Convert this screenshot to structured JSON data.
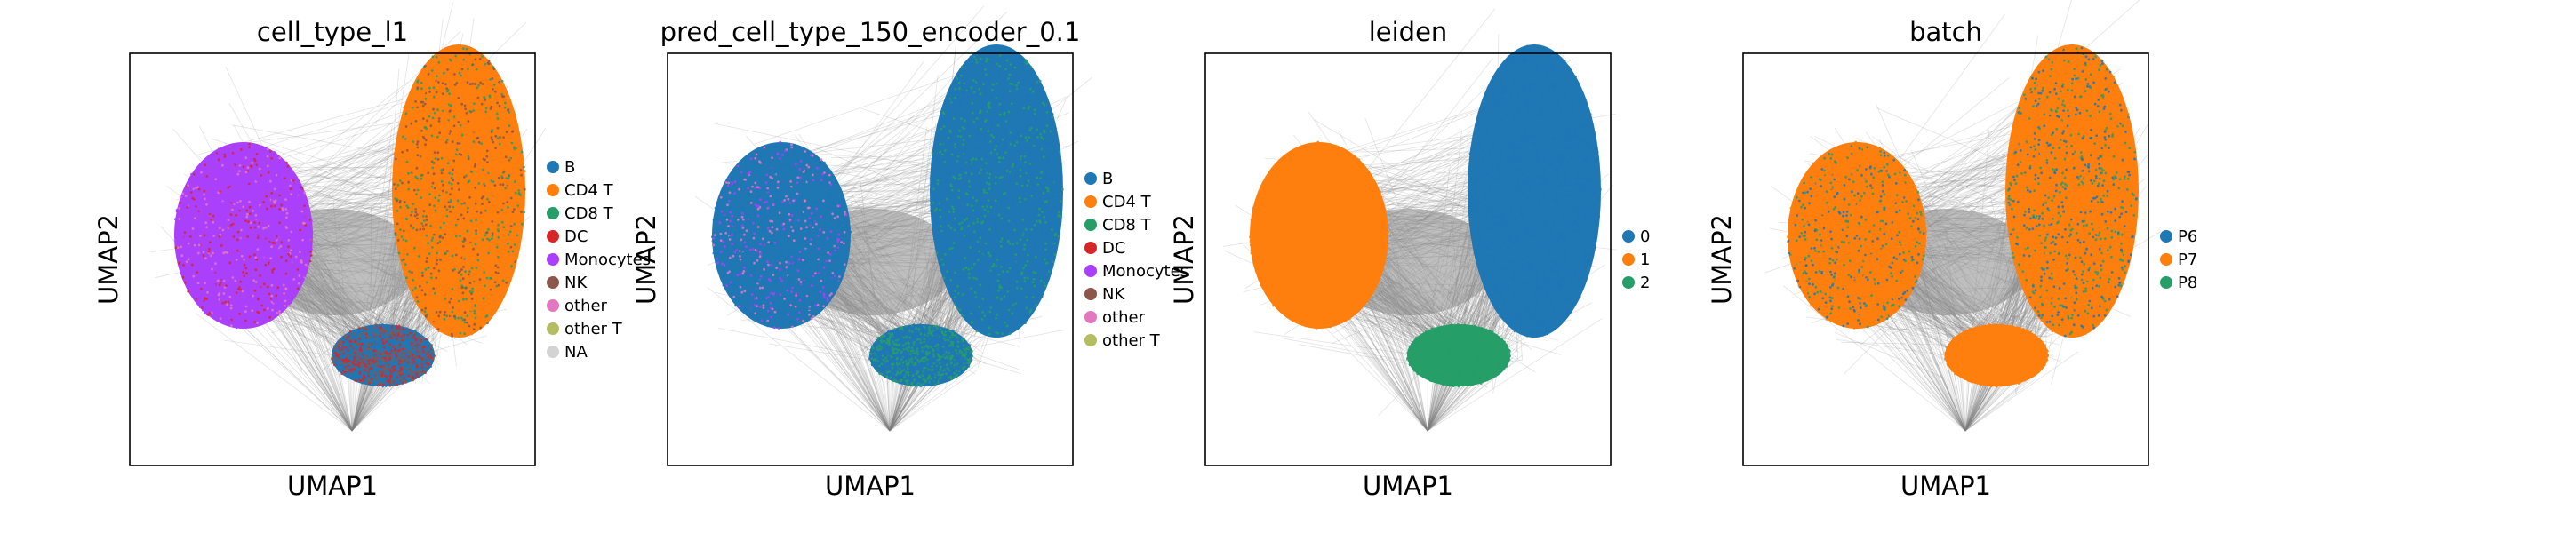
{
  "figure": {
    "panels": [
      {
        "title": "cell_type_l1",
        "xlabel": "UMAP1",
        "ylabel": "UMAP2",
        "legend": [
          {
            "label": "B",
            "color": "#1f77b4"
          },
          {
            "label": "CD4 T",
            "color": "#ff7f0e"
          },
          {
            "label": "CD8 T",
            "color": "#279e68"
          },
          {
            "label": "DC",
            "color": "#d62728"
          },
          {
            "label": "Monocytes",
            "color": "#aa40fc"
          },
          {
            "label": "NK",
            "color": "#8c564b"
          },
          {
            "label": "other",
            "color": "#e377c2"
          },
          {
            "label": "other T",
            "color": "#b5bd61"
          },
          {
            "label": "NA",
            "color": "#d3d3d3"
          }
        ],
        "coloring": {
          "left_cluster": "#aa40fc",
          "left_cluster_accents": [
            "#e377c2",
            "#d62728"
          ],
          "right_cluster": [
            "#ff7f0e",
            "#279e68",
            "#8c564b"
          ],
          "bottom_cluster": [
            "#1f77b4",
            "#d62728",
            "#8c564b"
          ]
        }
      },
      {
        "title": "pred_cell_type_150_encoder_0.1",
        "xlabel": "UMAP1",
        "ylabel": "UMAP2",
        "legend": [
          {
            "label": "B",
            "color": "#1f77b4"
          },
          {
            "label": "CD4 T",
            "color": "#ff7f0e"
          },
          {
            "label": "CD8 T",
            "color": "#279e68"
          },
          {
            "label": "DC",
            "color": "#d62728"
          },
          {
            "label": "Monocytes",
            "color": "#aa40fc"
          },
          {
            "label": "NK",
            "color": "#8c564b"
          },
          {
            "label": "other",
            "color": "#e377c2"
          },
          {
            "label": "other T",
            "color": "#b5bd61"
          }
        ],
        "coloring": {
          "left_cluster": "#1f77b4",
          "left_cluster_accents": [
            "#e377c2",
            "#aa40fc"
          ],
          "right_cluster": [
            "#1f77b4",
            "#279e68"
          ],
          "bottom_cluster": [
            "#1f77b4",
            "#279e68"
          ]
        }
      },
      {
        "title": "leiden",
        "xlabel": "UMAP1",
        "ylabel": "UMAP2",
        "legend": [
          {
            "label": "0",
            "color": "#1f77b4"
          },
          {
            "label": "1",
            "color": "#ff7f0e"
          },
          {
            "label": "2",
            "color": "#279e68"
          }
        ],
        "coloring": {
          "left_cluster": "#ff7f0e",
          "left_cluster_accents": [],
          "right_cluster": [
            "#1f77b4"
          ],
          "bottom_cluster": [
            "#279e68"
          ]
        }
      },
      {
        "title": "batch",
        "xlabel": "UMAP1",
        "ylabel": "UMAP2",
        "legend": [
          {
            "label": "P6",
            "color": "#1f77b4"
          },
          {
            "label": "P7",
            "color": "#ff7f0e"
          },
          {
            "label": "P8",
            "color": "#279e68"
          }
        ],
        "coloring": {
          "left_cluster": "#ff7f0e",
          "left_cluster_accents": [
            "#1f77b4",
            "#279e68"
          ],
          "right_cluster": [
            "#ff7f0e",
            "#279e68",
            "#1f77b4"
          ],
          "bottom_cluster": [
            "#ff7f0e"
          ]
        }
      }
    ]
  },
  "chart_data": [
    {
      "type": "scatter",
      "title": "cell_type_l1",
      "xlabel": "UMAP1",
      "ylabel": "UMAP2",
      "series": [
        {
          "name": "B"
        },
        {
          "name": "CD4 T"
        },
        {
          "name": "CD8 T"
        },
        {
          "name": "DC"
        },
        {
          "name": "Monocytes"
        },
        {
          "name": "NK"
        },
        {
          "name": "other"
        },
        {
          "name": "other T"
        },
        {
          "name": "NA"
        }
      ],
      "legend_position": "right",
      "grid": false
    },
    {
      "type": "scatter",
      "title": "pred_cell_type_150_encoder_0.1",
      "xlabel": "UMAP1",
      "ylabel": "UMAP2",
      "series": [
        {
          "name": "B"
        },
        {
          "name": "CD4 T"
        },
        {
          "name": "CD8 T"
        },
        {
          "name": "DC"
        },
        {
          "name": "Monocytes"
        },
        {
          "name": "NK"
        },
        {
          "name": "other"
        },
        {
          "name": "other T"
        }
      ],
      "legend_position": "right",
      "grid": false
    },
    {
      "type": "scatter",
      "title": "leiden",
      "xlabel": "UMAP1",
      "ylabel": "UMAP2",
      "series": [
        {
          "name": "0"
        },
        {
          "name": "1"
        },
        {
          "name": "2"
        }
      ],
      "legend_position": "right",
      "grid": false
    },
    {
      "type": "scatter",
      "title": "batch",
      "xlabel": "UMAP1",
      "ylabel": "UMAP2",
      "series": [
        {
          "name": "P6"
        },
        {
          "name": "P7"
        },
        {
          "name": "P8"
        }
      ],
      "legend_position": "right",
      "grid": false
    }
  ]
}
